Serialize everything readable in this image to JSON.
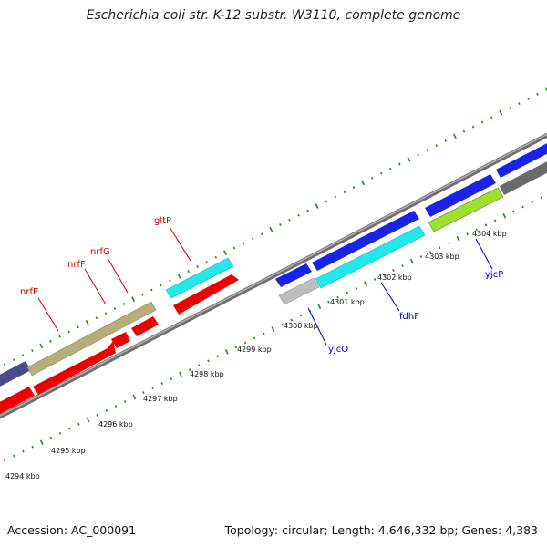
{
  "header": {
    "title": "Escherichia coli str. K-12 substr. W3110, complete genome"
  },
  "footer": {
    "accession": "Accession: AC_000091",
    "summary": "Topology: circular; Length: 4,646,332 bp; Genes: 4,383"
  },
  "colors": {
    "backbone": "#8a8a8a",
    "tick": "#1a8a1a",
    "gene_red_label": "#cc0000",
    "gene_blue_label": "#0000cc",
    "red": "#ff0000",
    "olive": "#b9b37e",
    "cyan": "#22e8ec",
    "blue": "#1a22e8",
    "navy": "#4a4a8a",
    "silver": "#bdbdbd",
    "lime": "#9be12e",
    "gray": "#707070"
  },
  "scale": {
    "labels": [
      "4294 kbp",
      "4295 kbp",
      "4296 kbp",
      "4297 kbp",
      "4298 kbp",
      "4299 kbp",
      "4300 kbp",
      "4301 kbp",
      "4302 kbp",
      "4303 kbp",
      "4304 kbp"
    ]
  },
  "genes": {
    "nrfE": "nrfE",
    "nrfF": "nrfF",
    "nrfG": "nrfG",
    "gltP": "gltP",
    "yjcO": "yjcO",
    "fdhF": "fdhF",
    "yjcP": "yjcP"
  }
}
